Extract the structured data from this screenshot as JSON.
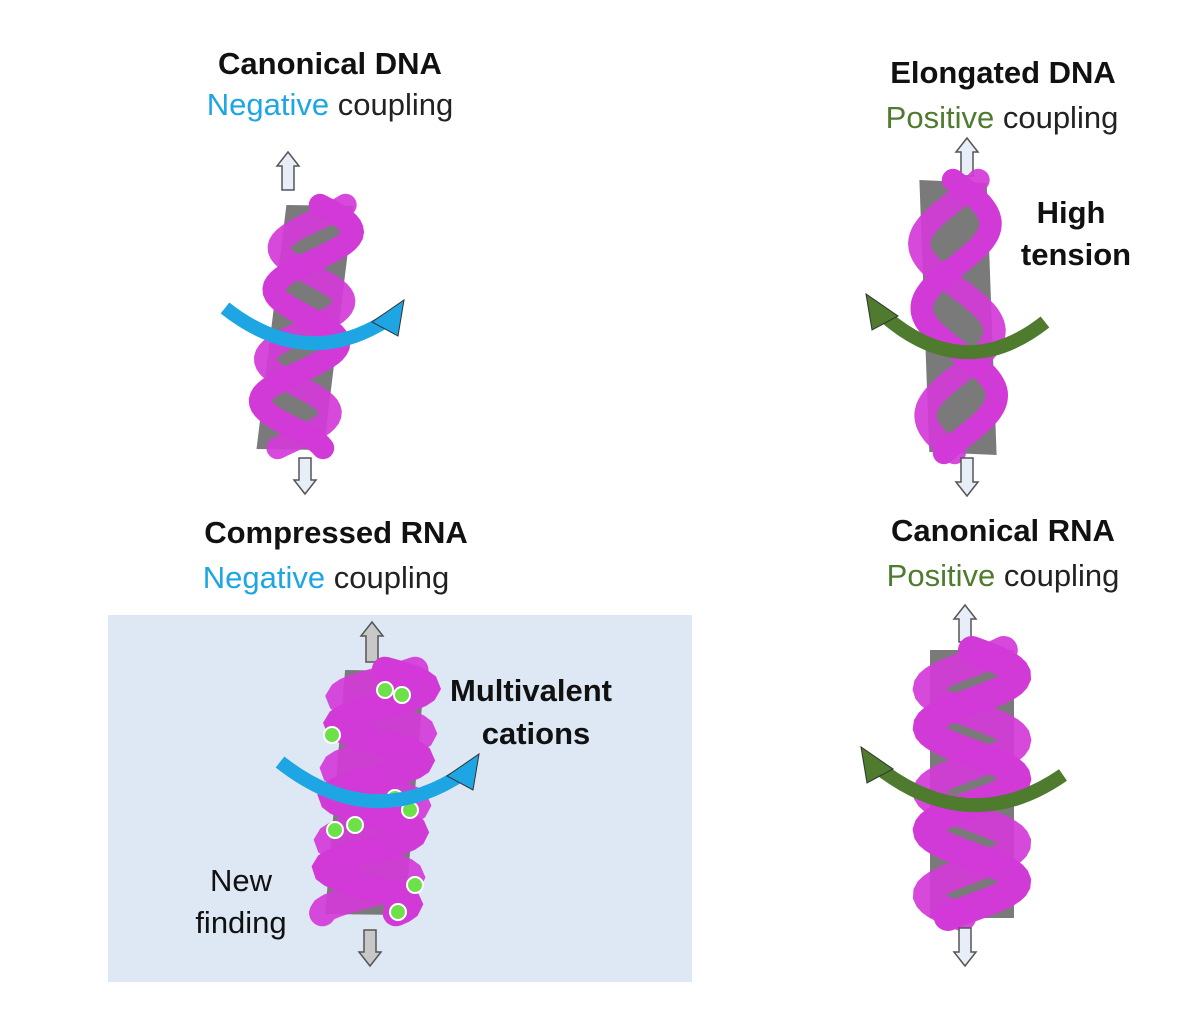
{
  "colors": {
    "negative": "#1ea6e4",
    "positive": "#4e7b2e",
    "backbone": "#d23ad8",
    "bases": "#7a7a7a",
    "highlight_box": "#dde8f4",
    "cations": "#6ee04a"
  },
  "panels": {
    "canonical_dna": {
      "title": "Canonical DNA",
      "coupling_word": "Negative",
      "coupling_rest": " coupling"
    },
    "compressed_rna": {
      "title": "Compressed RNA",
      "coupling_word": "Negative",
      "coupling_rest": " coupling",
      "label_line1": "Multivalent",
      "label_line2": "cations",
      "note_line1": "New",
      "note_line2": "finding"
    },
    "elongated_dna": {
      "title": "Elongated DNA",
      "coupling_word": "Positive",
      "coupling_rest": " coupling",
      "label_line1": "High",
      "label_line2": "tension"
    },
    "canonical_rna": {
      "title": "Canonical RNA",
      "coupling_word": "Positive",
      "coupling_rest": " coupling"
    }
  },
  "icons": [
    "stretch-up-arrow-icon",
    "stretch-down-arrow-icon",
    "twist-arrow-icon",
    "helix-model"
  ]
}
